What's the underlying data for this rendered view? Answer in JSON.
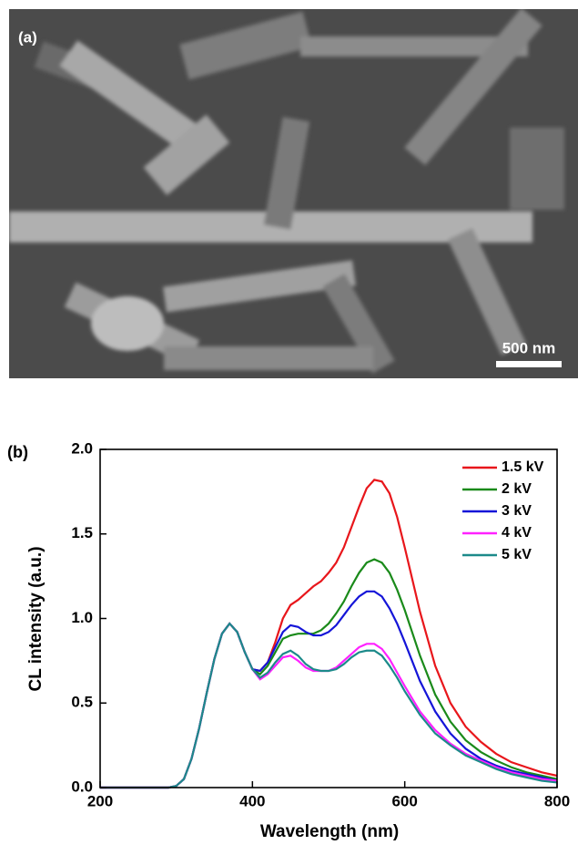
{
  "image": {
    "label": "(a)",
    "scale_bar": "500 nm"
  },
  "chart_data": {
    "type": "line",
    "panel_label": "(b)",
    "x_label": "Wavelength (nm)",
    "y_label": "CL intensity (a.u.)",
    "xlim": [
      200,
      800
    ],
    "ylim": [
      0,
      2
    ],
    "xticks": [
      200,
      400,
      600,
      800
    ],
    "yticks": [
      {
        "value": 0,
        "label": "0.0"
      },
      0.5,
      {
        "value": 1,
        "label": "1.0"
      },
      1.5,
      {
        "value": 2,
        "label": "2.0"
      }
    ],
    "legend": "top-right",
    "x": [
      200,
      290,
      300,
      310,
      320,
      330,
      340,
      350,
      360,
      370,
      380,
      390,
      400,
      410,
      420,
      430,
      440,
      450,
      460,
      470,
      480,
      490,
      500,
      510,
      520,
      530,
      540,
      550,
      560,
      570,
      580,
      590,
      600,
      620,
      640,
      660,
      680,
      700,
      720,
      740,
      760,
      780,
      800
    ],
    "series": [
      {
        "name": "1.5 kV",
        "color": "#e8161b",
        "values": [
          0,
          0,
          0.01,
          0.05,
          0.17,
          0.35,
          0.56,
          0.76,
          0.91,
          0.97,
          0.92,
          0.8,
          0.7,
          0.69,
          0.74,
          0.86,
          1.0,
          1.08,
          1.11,
          1.15,
          1.19,
          1.22,
          1.27,
          1.33,
          1.42,
          1.54,
          1.66,
          1.77,
          1.82,
          1.81,
          1.74,
          1.6,
          1.42,
          1.04,
          0.72,
          0.5,
          0.36,
          0.27,
          0.2,
          0.15,
          0.12,
          0.09,
          0.07
        ]
      },
      {
        "name": "2 kV",
        "color": "#1a8a1a",
        "values": [
          0,
          0,
          0.01,
          0.05,
          0.17,
          0.35,
          0.56,
          0.76,
          0.91,
          0.97,
          0.92,
          0.8,
          0.7,
          0.67,
          0.72,
          0.8,
          0.88,
          0.9,
          0.91,
          0.91,
          0.91,
          0.93,
          0.97,
          1.03,
          1.1,
          1.19,
          1.27,
          1.33,
          1.35,
          1.33,
          1.27,
          1.17,
          1.05,
          0.78,
          0.55,
          0.39,
          0.28,
          0.21,
          0.16,
          0.12,
          0.09,
          0.07,
          0.05
        ]
      },
      {
        "name": "3 kV",
        "color": "#1515d8",
        "values": [
          0,
          0,
          0.01,
          0.05,
          0.17,
          0.35,
          0.56,
          0.76,
          0.91,
          0.97,
          0.92,
          0.8,
          0.7,
          0.69,
          0.74,
          0.83,
          0.92,
          0.96,
          0.95,
          0.92,
          0.9,
          0.9,
          0.92,
          0.96,
          1.02,
          1.08,
          1.13,
          1.16,
          1.16,
          1.13,
          1.06,
          0.97,
          0.86,
          0.63,
          0.45,
          0.32,
          0.23,
          0.17,
          0.13,
          0.1,
          0.08,
          0.06,
          0.04
        ]
      },
      {
        "name": "4 kV",
        "color": "#ff22ff",
        "values": [
          0,
          0,
          0.01,
          0.05,
          0.17,
          0.35,
          0.56,
          0.76,
          0.91,
          0.97,
          0.92,
          0.8,
          0.7,
          0.64,
          0.67,
          0.72,
          0.77,
          0.78,
          0.75,
          0.71,
          0.69,
          0.69,
          0.69,
          0.71,
          0.75,
          0.79,
          0.83,
          0.85,
          0.85,
          0.82,
          0.76,
          0.68,
          0.6,
          0.45,
          0.34,
          0.26,
          0.2,
          0.16,
          0.12,
          0.09,
          0.07,
          0.05,
          0.04
        ]
      },
      {
        "name": "5 kV",
        "color": "#1c8a8a",
        "values": [
          0,
          0,
          0.01,
          0.05,
          0.17,
          0.35,
          0.56,
          0.76,
          0.91,
          0.97,
          0.92,
          0.8,
          0.7,
          0.65,
          0.68,
          0.74,
          0.79,
          0.81,
          0.78,
          0.73,
          0.7,
          0.69,
          0.69,
          0.7,
          0.73,
          0.77,
          0.8,
          0.81,
          0.81,
          0.78,
          0.72,
          0.65,
          0.57,
          0.43,
          0.32,
          0.25,
          0.19,
          0.15,
          0.11,
          0.08,
          0.06,
          0.04,
          0.03
        ]
      }
    ]
  }
}
